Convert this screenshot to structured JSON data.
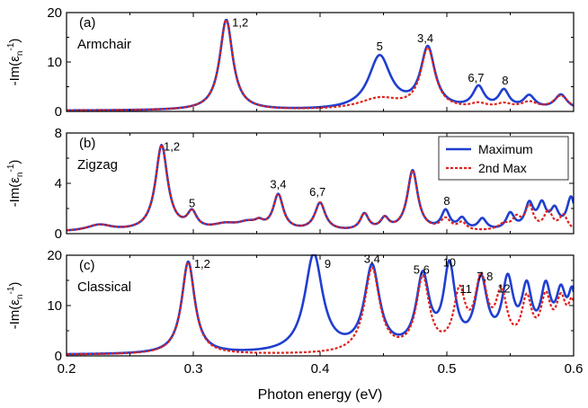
{
  "figure": {
    "xlabel": "Photon energy (eV)",
    "legend": {
      "max_label": "Maximum",
      "second_label": "2nd Max"
    }
  },
  "colors": {
    "max": "#1f3fd0",
    "second": "#e0221c",
    "axis": "#000000"
  },
  "chart_data": [
    {
      "type": "line",
      "panel_label": "(a)",
      "name_label": "Armchair",
      "ylabel_prefix": "-Im(ε",
      "ylabel_sub": "n",
      "ylabel_sup": "-1",
      "ylabel_suffix": ")",
      "xlim": [
        0.2,
        0.6
      ],
      "ylim": [
        0,
        20
      ],
      "xticks": [
        0.2,
        0.3,
        0.4,
        0.5,
        0.6
      ],
      "yticks": [
        0,
        10,
        20
      ],
      "ytick_labels": [
        "0",
        "10",
        "20"
      ],
      "baseline": 0.15,
      "max_peaks": [
        [
          0.326,
          18.3,
          0.0062
        ],
        [
          0.447,
          10.8,
          0.0105
        ],
        [
          0.485,
          12.2,
          0.0068
        ],
        [
          0.525,
          4.3,
          0.0055
        ],
        [
          0.545,
          3.6,
          0.005
        ],
        [
          0.565,
          2.6,
          0.0055
        ],
        [
          0.59,
          3.0,
          0.006
        ]
      ],
      "second_peaks": [
        [
          0.326,
          18.3,
          0.0062
        ],
        [
          0.447,
          2.3,
          0.02
        ],
        [
          0.485,
          12.2,
          0.0068
        ],
        [
          0.525,
          1.0,
          0.008
        ],
        [
          0.545,
          1.0,
          0.008
        ],
        [
          0.565,
          1.4,
          0.008
        ],
        [
          0.59,
          2.8,
          0.007
        ]
      ],
      "annotations": [
        {
          "text": "1,2",
          "x": 0.337,
          "y": 17.2
        },
        {
          "text": "5",
          "x": 0.447,
          "y": 12.4
        },
        {
          "text": "3,4",
          "x": 0.483,
          "y": 14.0
        },
        {
          "text": "6,7",
          "x": 0.523,
          "y": 6.0
        },
        {
          "text": "8",
          "x": 0.546,
          "y": 5.5
        }
      ]
    },
    {
      "type": "line",
      "panel_label": "(b)",
      "name_label": "Zigzag",
      "ylabel_prefix": "-Im(ε",
      "ylabel_sub": "n",
      "ylabel_sup": "-1",
      "ylabel_suffix": ")",
      "xlim": [
        0.2,
        0.6
      ],
      "ylim": [
        0,
        8
      ],
      "xticks": [
        0.2,
        0.3,
        0.4,
        0.5,
        0.6
      ],
      "yticks": [
        0,
        4,
        8
      ],
      "ytick_labels": [
        "0",
        "4",
        "8"
      ],
      "baseline": 0.12,
      "max_peaks": [
        [
          0.226,
          0.5,
          0.012
        ],
        [
          0.275,
          6.8,
          0.0058
        ],
        [
          0.299,
          1.3,
          0.0045
        ],
        [
          0.325,
          0.45,
          0.012
        ],
        [
          0.343,
          0.55,
          0.01
        ],
        [
          0.352,
          0.4,
          0.004
        ],
        [
          0.367,
          2.8,
          0.0048
        ],
        [
          0.4,
          2.2,
          0.005
        ],
        [
          0.435,
          1.3,
          0.004
        ],
        [
          0.451,
          0.9,
          0.004
        ],
        [
          0.473,
          4.8,
          0.005
        ],
        [
          0.499,
          1.5,
          0.004
        ],
        [
          0.512,
          0.9,
          0.004
        ],
        [
          0.528,
          0.9,
          0.004
        ],
        [
          0.55,
          1.3,
          0.004
        ],
        [
          0.565,
          2.0,
          0.004
        ],
        [
          0.575,
          1.9,
          0.004
        ],
        [
          0.585,
          1.5,
          0.004
        ],
        [
          0.598,
          2.6,
          0.004
        ]
      ],
      "second_peaks": [
        [
          0.226,
          0.5,
          0.012
        ],
        [
          0.275,
          6.8,
          0.0058
        ],
        [
          0.299,
          1.3,
          0.0045
        ],
        [
          0.325,
          0.45,
          0.012
        ],
        [
          0.343,
          0.55,
          0.01
        ],
        [
          0.352,
          0.4,
          0.004
        ],
        [
          0.367,
          2.8,
          0.0048
        ],
        [
          0.4,
          2.2,
          0.005
        ],
        [
          0.435,
          1.3,
          0.004
        ],
        [
          0.451,
          0.9,
          0.004
        ],
        [
          0.473,
          4.8,
          0.005
        ],
        [
          0.499,
          0.9,
          0.005
        ],
        [
          0.512,
          0.6,
          0.004
        ],
        [
          0.545,
          0.5,
          0.006
        ],
        [
          0.555,
          0.9,
          0.004
        ],
        [
          0.565,
          1.9,
          0.004
        ],
        [
          0.58,
          1.5,
          0.004
        ],
        [
          0.592,
          1.2,
          0.004
        ]
      ],
      "annotations": [
        {
          "text": "1,2",
          "x": 0.283,
          "y": 6.6
        },
        {
          "text": "5",
          "x": 0.299,
          "y": 2.1
        },
        {
          "text": "3,4",
          "x": 0.367,
          "y": 3.6
        },
        {
          "text": "6,7",
          "x": 0.398,
          "y": 3.0
        },
        {
          "text": "8",
          "x": 0.5,
          "y": 2.3
        }
      ]
    },
    {
      "type": "line",
      "panel_label": "(c)",
      "name_label": "Classical",
      "ylabel_prefix": "-Im(ε",
      "ylabel_sub": "n",
      "ylabel_sup": "-1",
      "ylabel_suffix": ")",
      "xlim": [
        0.2,
        0.6
      ],
      "ylim": [
        0,
        20
      ],
      "xticks": [
        0.2,
        0.3,
        0.4,
        0.5,
        0.6
      ],
      "yticks": [
        0,
        10,
        20
      ],
      "ytick_labels": [
        "0",
        "10",
        "20"
      ],
      "xtick_labels": [
        "0.2",
        "0.3",
        "0.4",
        "0.5",
        "0.6"
      ],
      "baseline": 0.2,
      "max_peaks": [
        [
          0.296,
          18.3,
          0.0062
        ],
        [
          0.395,
          19.5,
          0.0085
        ],
        [
          0.441,
          16.8,
          0.0072
        ],
        [
          0.481,
          14.5,
          0.0062
        ],
        [
          0.502,
          16.2,
          0.0055
        ],
        [
          0.527,
          13.5,
          0.006
        ],
        [
          0.548,
          13.0,
          0.0055
        ],
        [
          0.563,
          11.0,
          0.005
        ],
        [
          0.578,
          11.0,
          0.005
        ],
        [
          0.59,
          9.8,
          0.005
        ],
        [
          0.599,
          10.0,
          0.004
        ]
      ],
      "second_peaks": [
        [
          0.296,
          18.3,
          0.0062
        ],
        [
          0.441,
          16.8,
          0.0072
        ],
        [
          0.481,
          14.5,
          0.0062
        ],
        [
          0.51,
          11.0,
          0.0055
        ],
        [
          0.527,
          13.5,
          0.006
        ],
        [
          0.543,
          10.5,
          0.0055
        ],
        [
          0.563,
          9.5,
          0.005
        ],
        [
          0.578,
          9.5,
          0.005
        ],
        [
          0.59,
          8.8,
          0.005
        ],
        [
          0.599,
          8.3,
          0.004
        ]
      ],
      "annotations": [
        {
          "text": "1,2",
          "x": 0.307,
          "y": 17.5
        },
        {
          "text": "9",
          "x": 0.406,
          "y": 17.5
        },
        {
          "text": "3,4",
          "x": 0.441,
          "y": 18.5
        },
        {
          "text": "5,6",
          "x": 0.48,
          "y": 16.3
        },
        {
          "text": "10",
          "x": 0.502,
          "y": 17.8
        },
        {
          "text": "11",
          "x": 0.515,
          "y": 12.5
        },
        {
          "text": "7,8",
          "x": 0.53,
          "y": 15.0
        },
        {
          "text": "12",
          "x": 0.545,
          "y": 12.6
        }
      ]
    }
  ]
}
